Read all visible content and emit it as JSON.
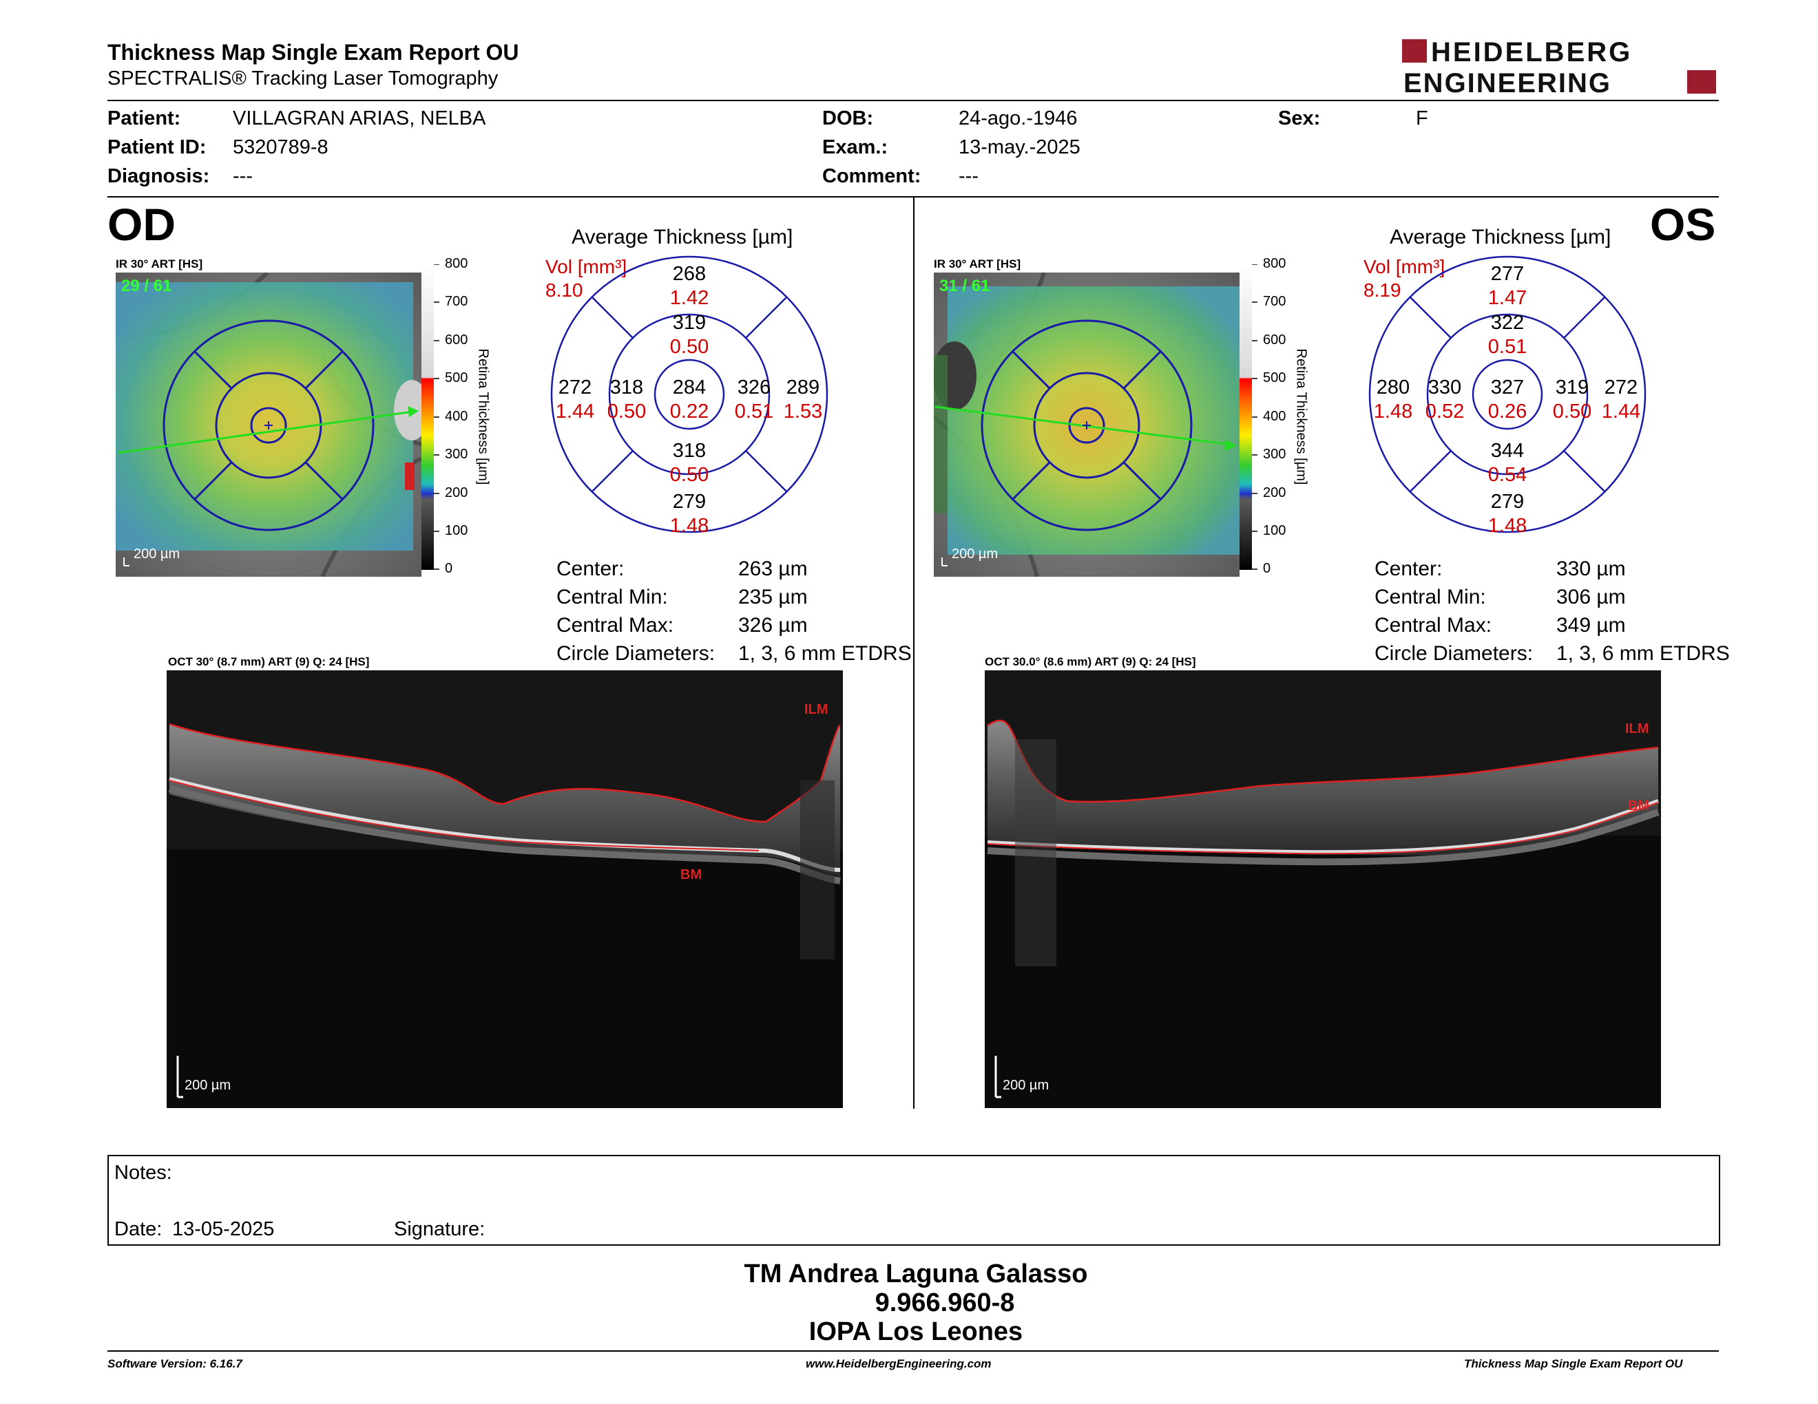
{
  "header": {
    "title": "Thickness Map Single Exam Report OU",
    "subtitle": "SPECTRALIS® Tracking Laser Tomography",
    "logo_line1": "HEIDELBERG",
    "logo_line2": "ENGINEERING"
  },
  "patient": {
    "patient_label": "Patient:",
    "patient_value": "VILLAGRAN ARIAS, NELBA",
    "id_label": "Patient ID:",
    "id_value": "5320789-8",
    "diagnosis_label": "Diagnosis:",
    "diagnosis_value": "---",
    "dob_label": "DOB:",
    "dob_value": "24-ago.-1946",
    "exam_label": "Exam.:",
    "exam_value": "13-may.-2025",
    "comment_label": "Comment:",
    "comment_value": "---",
    "sex_label": "Sex:",
    "sex_value": "F"
  },
  "od": {
    "eye": "OD",
    "ir_label": "IR 30° ART [HS]",
    "frame_count": "29 / 61",
    "scale": "200 µm",
    "avg_title": "Average Thickness [µm]",
    "vol_label": "Vol [mm³]",
    "vol_value": "8.10",
    "etdrs": {
      "outer_sup": {
        "t": "268",
        "v": "1.42"
      },
      "inner_sup": {
        "t": "319",
        "v": "0.50"
      },
      "outer_temp": {
        "t": "272",
        "v": "1.44"
      },
      "inner_temp": {
        "t": "318",
        "v": "0.50"
      },
      "center": {
        "t": "284",
        "v": "0.22"
      },
      "inner_nas": {
        "t": "326",
        "v": "0.51"
      },
      "outer_nas": {
        "t": "289",
        "v": "1.53"
      },
      "inner_inf": {
        "t": "318",
        "v": "0.50"
      },
      "outer_inf": {
        "t": "279",
        "v": "1.48"
      }
    },
    "stats": {
      "center_label": "Center:",
      "center_value": "263 µm",
      "min_label": "Central Min:",
      "min_value": "235 µm",
      "max_label": "Central Max:",
      "max_value": "326 µm",
      "diam_label": "Circle Diameters:",
      "diam_value": "1, 3, 6 mm ETDRS"
    },
    "oct_label": "OCT 30° (8.7 mm) ART (9) Q: 24 [HS]",
    "ilm": "ILM",
    "bm": "BM",
    "oct_scale": "200 µm"
  },
  "os": {
    "eye": "OS",
    "ir_label": "IR 30° ART [HS]",
    "frame_count": "31 / 61",
    "scale": "200 µm",
    "avg_title": "Average Thickness [µm]",
    "vol_label": "Vol [mm³]",
    "vol_value": "8.19",
    "etdrs": {
      "outer_sup": {
        "t": "277",
        "v": "1.47"
      },
      "inner_sup": {
        "t": "322",
        "v": "0.51"
      },
      "outer_temp": {
        "t": "280",
        "v": "1.48"
      },
      "inner_temp": {
        "t": "330",
        "v": "0.52"
      },
      "center": {
        "t": "327",
        "v": "0.26"
      },
      "inner_nas": {
        "t": "319",
        "v": "0.50"
      },
      "outer_nas": {
        "t": "272",
        "v": "1.44"
      },
      "inner_inf": {
        "t": "344",
        "v": "0.54"
      },
      "outer_inf": {
        "t": "279",
        "v": "1.48"
      }
    },
    "stats": {
      "center_label": "Center:",
      "center_value": "330 µm",
      "min_label": "Central Min:",
      "min_value": "306 µm",
      "max_label": "Central Max:",
      "max_value": "349 µm",
      "diam_label": "Circle Diameters:",
      "diam_value": "1, 3, 6 mm ETDRS"
    },
    "oct_label": "OCT 30.0° (8.6 mm) ART (9) Q: 24 [HS]",
    "ilm": "ILM",
    "bm": "BM",
    "oct_scale": "200 µm"
  },
  "colorbar": {
    "title": "Retina Thickness [µm]",
    "ticks": [
      "800",
      "700",
      "600",
      "500",
      "400",
      "300",
      "200",
      "100",
      "0"
    ]
  },
  "notes": {
    "notes_label": "Notes:",
    "date_label": "Date:",
    "date_value": "13-05-2025",
    "signature_label": "Signature:"
  },
  "signature_block": {
    "name": "TM Andrea Laguna Galasso",
    "id": "9.966.960-8",
    "org": "IOPA Los Leones"
  },
  "footer": {
    "software": "Software Version: 6.16.7",
    "website": "www.HeidelbergEngineering.com",
    "report": "Thickness Map Single Exam Report OU"
  },
  "colors": {
    "etdrs_blue": "#1a1aa8",
    "red_text": "#d00000",
    "logo_red": "#9b1c2c",
    "scan_line": "#22dd22",
    "frame_green": "#33ff33"
  }
}
